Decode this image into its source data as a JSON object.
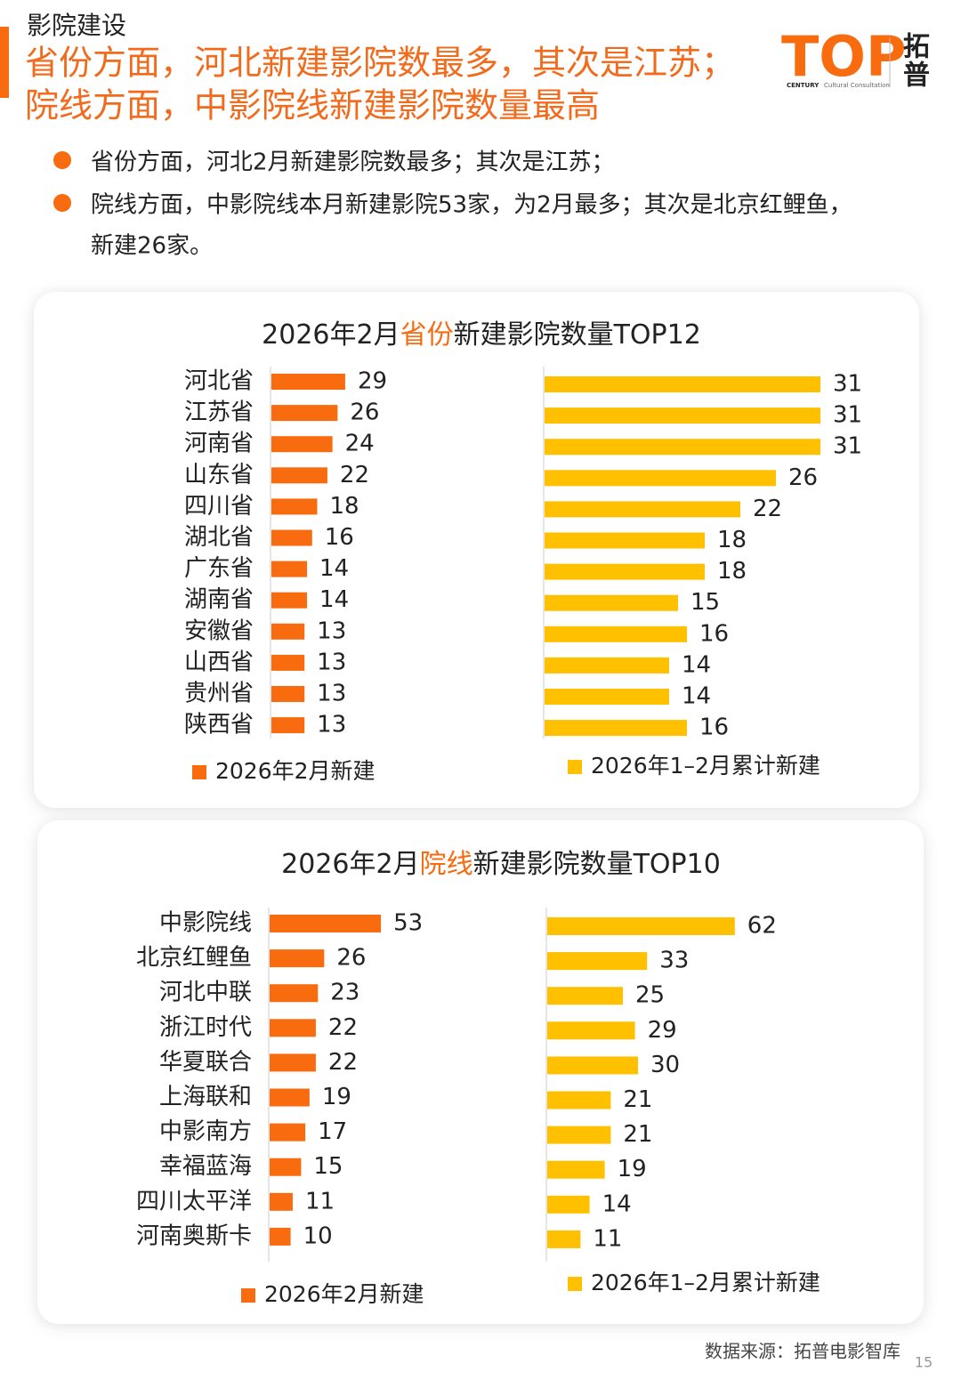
{
  "header": {
    "section": "影院建设",
    "title": [
      "省份方面，河北新建影院数最多，其次是江苏；",
      "院线方面，中影院线新建影院数量最高"
    ]
  },
  "logo": {
    "mark": "TOP",
    "brand": "CENTURY",
    "tagline": "Cultural Consultation",
    "name": [
      "拓",
      "普"
    ]
  },
  "bullets": [
    [
      "省份方面，河北2月新建影院数最多；其次是江苏；"
    ],
    [
      "院线方面，中影院线本月新建影院53家，为2月最多；其次是北京红鲤鱼，",
      "新建26家。"
    ]
  ],
  "chart_data": [
    {
      "type": "bar",
      "title": [
        "2026年2月",
        "省份",
        "新建影院数量TOP12"
      ],
      "categories": [
        "河北省",
        "江苏省",
        "河南省",
        "山东省",
        "四川省",
        "湖北省",
        "广东省",
        "湖南省",
        "安徽省",
        "山西省",
        "贵州省",
        "陕西省"
      ],
      "series": [
        {
          "name": "2026年2月新建",
          "color": "#f96b0f",
          "values": [
            29,
            26,
            24,
            22,
            18,
            16,
            14,
            14,
            13,
            13,
            13,
            13
          ]
        },
        {
          "name": "2026年1–2月累计新建",
          "color": "#ffc000",
          "values": [
            31,
            31,
            31,
            26,
            22,
            18,
            18,
            15,
            16,
            14,
            14,
            16
          ]
        }
      ]
    },
    {
      "type": "bar",
      "title": [
        "2026年2月",
        "院线",
        "新建影院数量TOP10"
      ],
      "categories": [
        "中影院线",
        "北京红鲤鱼",
        "河北中联",
        "浙江时代",
        "华夏联合",
        "上海联和",
        "中影南方",
        "幸福蓝海",
        "四川太平洋",
        "河南奥斯卡"
      ],
      "series": [
        {
          "name": "2026年2月新建",
          "color": "#f96b0f",
          "values": [
            53,
            26,
            23,
            22,
            22,
            19,
            17,
            15,
            11,
            10
          ]
        },
        {
          "name": "2026年1–2月累计新建",
          "color": "#ffc000",
          "values": [
            62,
            33,
            25,
            29,
            30,
            21,
            21,
            19,
            14,
            11
          ]
        }
      ]
    }
  ],
  "footer": {
    "source": "数据来源：拓普电影智库",
    "page": "15"
  }
}
